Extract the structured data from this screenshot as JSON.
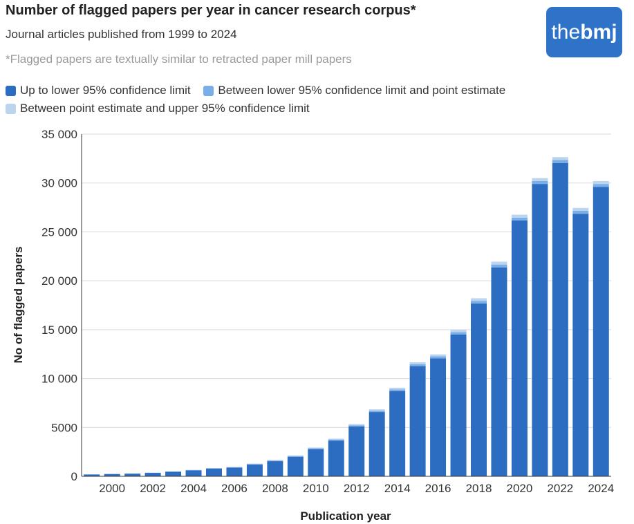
{
  "header": {
    "title": "Number of flagged papers per year in cancer research corpus*",
    "subtitle": "Journal articles published from 1999 to 2024",
    "footnote": "*Flagged papers are textually similar to retracted paper mill papers"
  },
  "logo": {
    "text_light": "the",
    "text_bold": "bmj",
    "color": "#2f73c8"
  },
  "colors": {
    "dark": "#2c6cc1",
    "mid": "#7aaee6",
    "light": "#bdd4ee",
    "grid": "#d9d9d9",
    "axis": "#333333"
  },
  "chart_data": {
    "type": "bar",
    "stacked": true,
    "xlabel": "Publication year",
    "ylabel": "No of flagged papers",
    "ylim": [
      0,
      35000
    ],
    "grid": true,
    "legend_position": "top-left",
    "y_ticks": [
      {
        "value": 0,
        "label": "0"
      },
      {
        "value": 5000,
        "label": "5000"
      },
      {
        "value": 10000,
        "label": "10 000"
      },
      {
        "value": 15000,
        "label": "15 000"
      },
      {
        "value": 20000,
        "label": "20 000"
      },
      {
        "value": 25000,
        "label": "25 000"
      },
      {
        "value": 30000,
        "label": "30 000"
      },
      {
        "value": 35000,
        "label": "35 000"
      }
    ],
    "x_tick_labels": [
      "2000",
      "2002",
      "2004",
      "2006",
      "2008",
      "2010",
      "2012",
      "2014",
      "2016",
      "2018",
      "2020",
      "2022",
      "2024"
    ],
    "categories": [
      "1999",
      "2000",
      "2001",
      "2002",
      "2003",
      "2004",
      "2005",
      "2006",
      "2007",
      "2008",
      "2009",
      "2010",
      "2011",
      "2012",
      "2013",
      "2014",
      "2015",
      "2016",
      "2017",
      "2018",
      "2019",
      "2020",
      "2021",
      "2022",
      "2023",
      "2024"
    ],
    "series": [
      {
        "name": "Up to lower 95% confidence limit",
        "values": [
          180,
          230,
          270,
          350,
          460,
          600,
          780,
          880,
          1200,
          1550,
          2000,
          2780,
          3650,
          5100,
          6570,
          8720,
          11270,
          12070,
          14500,
          17670,
          21370,
          26160,
          29900,
          32050,
          26850,
          29600
        ]
      },
      {
        "name": "Between lower 95% confidence limit and point estimate",
        "values": [
          15,
          15,
          15,
          20,
          25,
          30,
          35,
          40,
          50,
          60,
          70,
          80,
          100,
          120,
          140,
          170,
          200,
          200,
          240,
          270,
          290,
          300,
          300,
          300,
          300,
          300
        ]
      },
      {
        "name": "Between point estimate and upper 95% confidence limit",
        "values": [
          15,
          15,
          15,
          20,
          25,
          30,
          35,
          40,
          50,
          60,
          70,
          80,
          100,
          120,
          140,
          170,
          200,
          200,
          240,
          270,
          290,
          300,
          300,
          300,
          300,
          300
        ]
      }
    ]
  }
}
